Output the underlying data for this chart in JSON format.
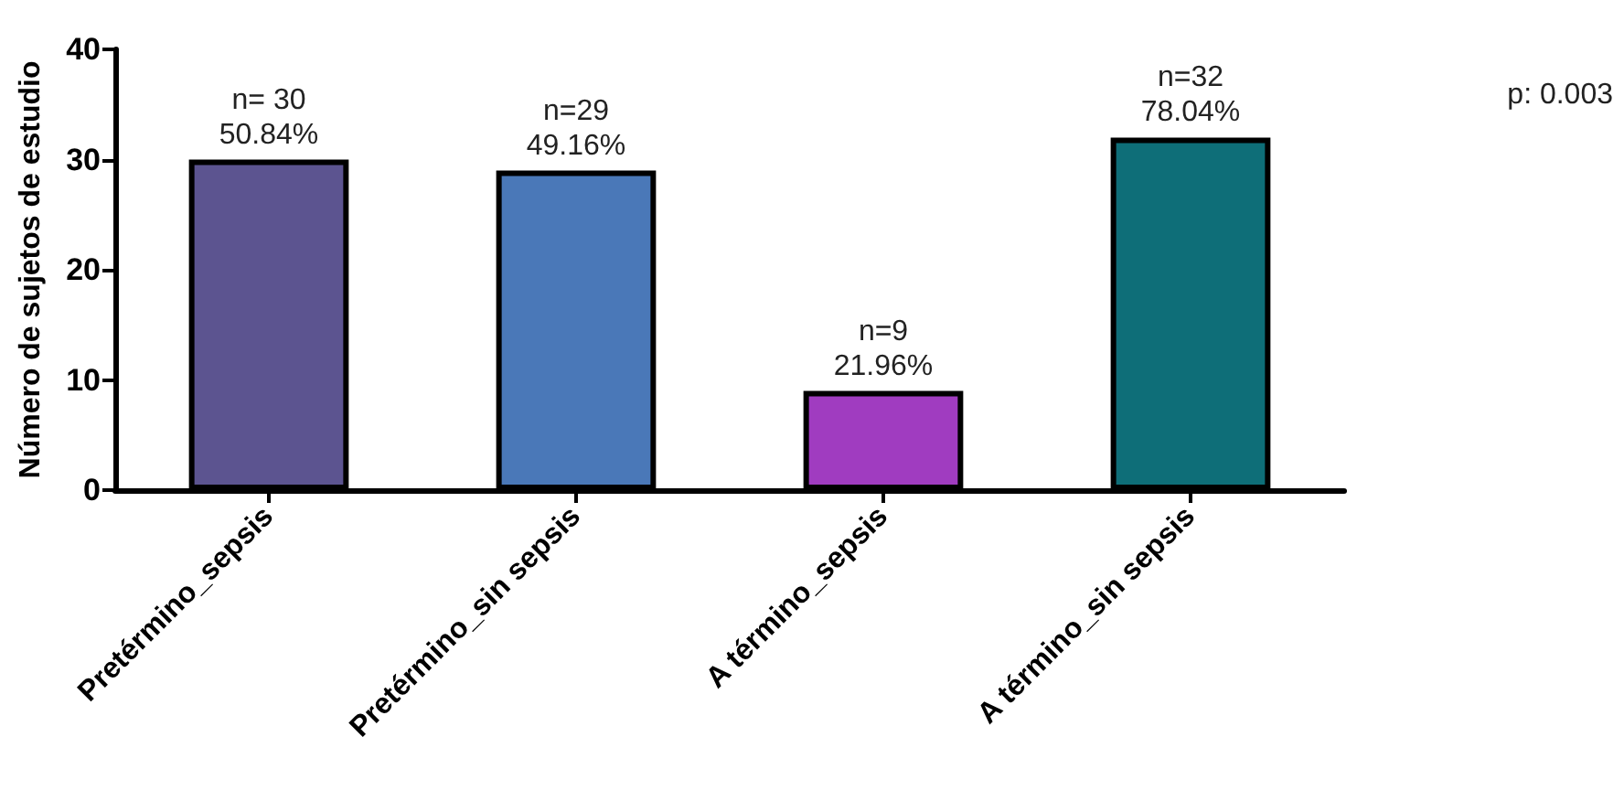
{
  "chart_data": {
    "type": "bar",
    "ylabel": "Número de sujetos de estudio",
    "categories": [
      "Pretérmino_sepsis",
      "Pretérmino_sin sepsis",
      "A término_sepsis",
      "A término_sin sepsis"
    ],
    "values": [
      30,
      29,
      9,
      32
    ],
    "colors": [
      "#5c5490",
      "#4a78b8",
      "#a03cc0",
      "#0e6e78"
    ],
    "value_labels": [
      "n= 30\n50.84%",
      "n=29\n49.16%",
      "n=9\n21.96%",
      "n=32\n78.04%"
    ],
    "ylim": [
      0,
      40
    ],
    "yticks": [
      0,
      10,
      20,
      30,
      40
    ],
    "grid": false,
    "annotations": [
      "p: 0.003"
    ]
  }
}
